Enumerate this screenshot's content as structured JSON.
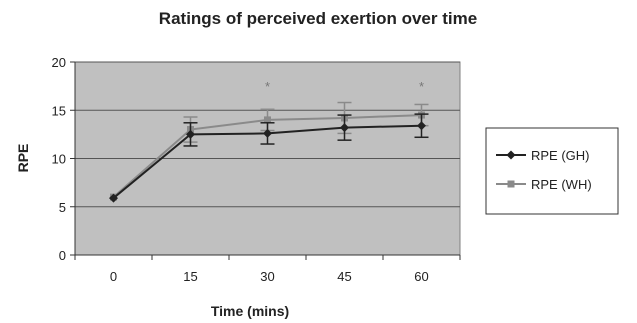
{
  "chart_data": {
    "type": "line",
    "title": "Ratings of perceived exertion over time",
    "xlabel": "Time (mins)",
    "ylabel": "RPE",
    "categories": [
      "0",
      "15",
      "30",
      "45",
      "60"
    ],
    "ylim": [
      0,
      20
    ],
    "yticks": [
      0,
      5,
      10,
      15,
      20
    ],
    "grid": true,
    "legend_position": "right",
    "plot_background": "#c0c0c0",
    "series": [
      {
        "name": "RPE (GH)",
        "color": "#222222",
        "marker": "diamond",
        "values": [
          5.9,
          12.5,
          12.6,
          13.2,
          13.4
        ],
        "error": [
          0.0,
          1.2,
          1.1,
          1.3,
          1.2
        ]
      },
      {
        "name": "RPE (WH)",
        "color": "#8a8a8a",
        "marker": "square",
        "values": [
          6.0,
          13.0,
          14.0,
          14.2,
          14.5
        ],
        "error": [
          0.0,
          1.3,
          1.1,
          1.6,
          1.1
        ]
      }
    ],
    "annotations": [
      {
        "text": "*",
        "category": "30",
        "y": 17.5
      },
      {
        "text": "*",
        "category": "60",
        "y": 17.5
      }
    ]
  }
}
